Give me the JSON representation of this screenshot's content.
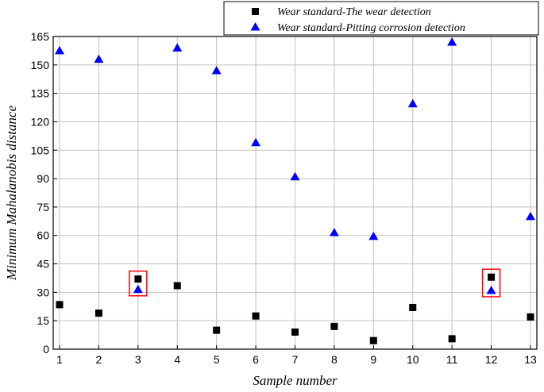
{
  "chart_data": {
    "type": "scatter",
    "xlabel": "Sample number",
    "ylabel": "Minimum Mahalanobis distance",
    "x": [
      1,
      2,
      3,
      4,
      5,
      6,
      7,
      8,
      9,
      10,
      11,
      12,
      13
    ],
    "xticks": [
      "1",
      "2",
      "3",
      "4",
      "5",
      "6",
      "7",
      "8",
      "9",
      "10",
      "11",
      "12",
      "13"
    ],
    "xlim": [
      1,
      13
    ],
    "ylim": [
      0,
      165
    ],
    "yticks": [
      "0",
      "15",
      "30",
      "45",
      "60",
      "75",
      "90",
      "105",
      "120",
      "135",
      "150",
      "165"
    ],
    "grid": true,
    "legend_position": "top-right",
    "series": [
      {
        "name": "Wear standard-The wear detection",
        "marker": "square",
        "color": "#000000",
        "values": [
          23.5,
          19,
          37,
          33.5,
          10,
          17.5,
          9,
          12,
          4.5,
          22,
          5.5,
          38,
          17
        ]
      },
      {
        "name": "Wear standard-Pitting corrosion detection",
        "marker": "triangle",
        "color": "#0000ff",
        "values": [
          157.5,
          153,
          31.5,
          159,
          147,
          109,
          91,
          61.5,
          59.5,
          129.5,
          162,
          31,
          70
        ]
      }
    ],
    "highlight_x": [
      3,
      12
    ],
    "highlight_color": "#ff0000"
  }
}
